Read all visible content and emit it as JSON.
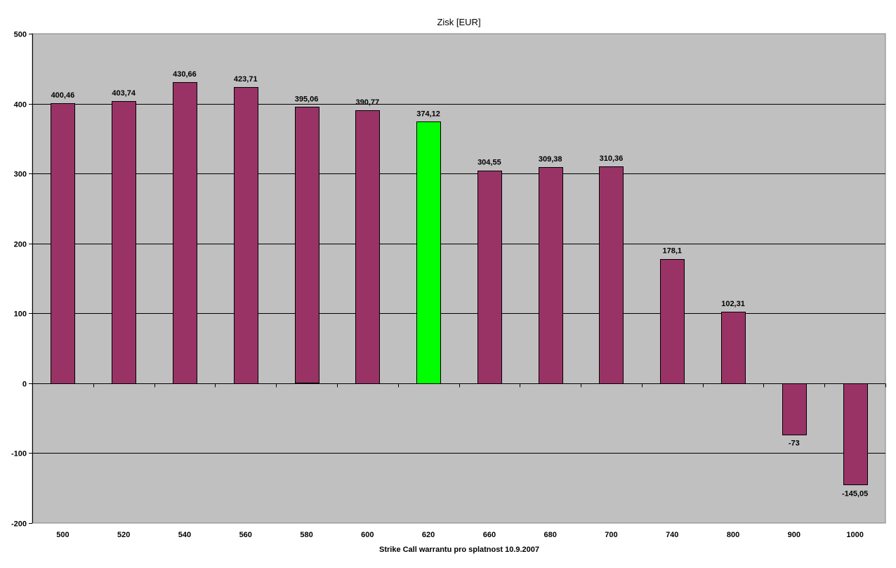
{
  "chart_data": {
    "type": "bar",
    "title": "Zisk [EUR]",
    "xlabel": "Strike Call warrantu pro splatnost 10.9.2007",
    "ylabel": "",
    "ylim": [
      -200,
      500
    ],
    "yticks": [
      -200,
      -100,
      0,
      100,
      200,
      300,
      400,
      500
    ],
    "grid": true,
    "legend": "none",
    "categories": [
      "500",
      "520",
      "540",
      "560",
      "580",
      "600",
      "620",
      "660",
      "680",
      "700",
      "740",
      "800",
      "900",
      "1000"
    ],
    "values": [
      400.46,
      403.74,
      430.66,
      423.71,
      395.06,
      390.77,
      374.12,
      304.55,
      309.38,
      310.36,
      178.1,
      102.31,
      -73,
      -145.05
    ],
    "data_labels": [
      "400,46",
      "403,74",
      "430,66",
      "423,71",
      "395,06",
      "390,77",
      "374,12",
      "304,55",
      "309,38",
      "310,36",
      "178,1",
      "102,31",
      "-73",
      "-145,05"
    ],
    "highlight_index": 6
  },
  "colors": {
    "plot_background": "#c0c0c0",
    "bar": "#993366",
    "bar_highlight": "#00ff00",
    "gridline": "#000000",
    "text": "#000000"
  }
}
